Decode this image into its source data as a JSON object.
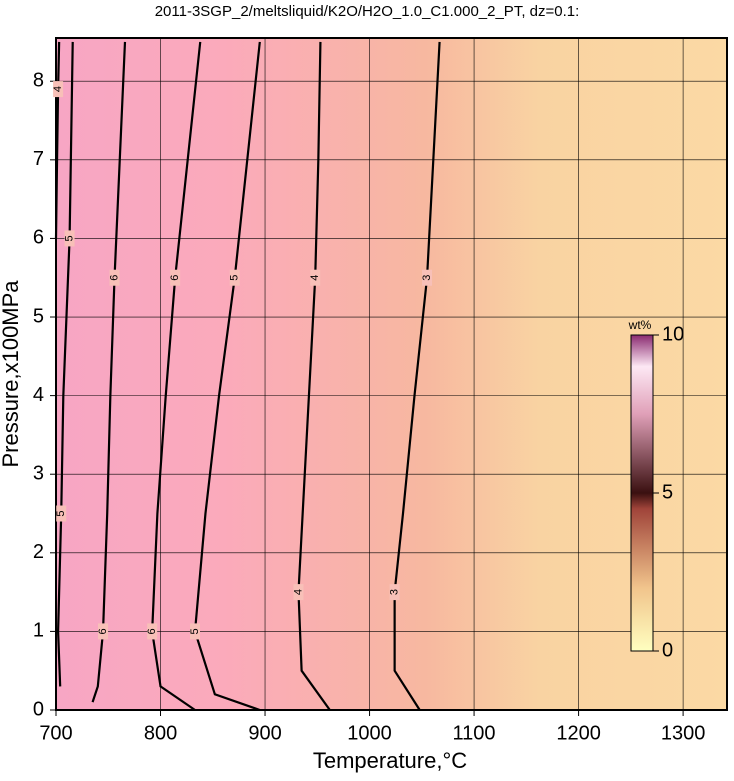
{
  "chart_data": {
    "type": "contour",
    "title": "2011-3SGP_2/meltsliquid/K2O/H2O_1.0_C1.000_2_PT, dz=0.1:",
    "x_label": "Temperature,°C",
    "y_label": "Pressure,x100MPa",
    "xlim": [
      700,
      1342
    ],
    "ylim": [
      0,
      8.55
    ],
    "xticks": [
      700,
      800,
      900,
      1000,
      1100,
      1200,
      1300
    ],
    "yticks": [
      0,
      1,
      2,
      3,
      4,
      5,
      6,
      7,
      8
    ],
    "grid": true,
    "contours": [
      {
        "level": 5,
        "x": [
          704,
          702,
          705,
          707,
          710,
          713,
          716
        ],
        "y": [
          0.3,
          1.0,
          2.5,
          4.0,
          5.0,
          6.0,
          8.5
        ]
      },
      {
        "level": 4,
        "x": [
          700,
          701,
          702,
          703
        ],
        "y": [
          6.0,
          7.0,
          7.9,
          8.5
        ]
      },
      {
        "level": 6,
        "x": [
          735,
          740,
          745,
          749,
          752,
          756,
          761,
          766
        ],
        "y": [
          0.1,
          0.3,
          1.0,
          2.5,
          4.0,
          5.5,
          7.0,
          8.5
        ]
      },
      {
        "level": 6,
        "x": [
          833,
          800,
          792,
          797,
          805,
          814,
          826,
          838
        ],
        "y": [
          0.0,
          0.3,
          1.0,
          2.5,
          4.0,
          5.5,
          7.0,
          8.5
        ]
      },
      {
        "level": 5,
        "x": [
          895,
          852,
          833,
          843,
          856,
          871,
          883,
          895
        ],
        "y": [
          0.0,
          0.2,
          1.0,
          2.5,
          4.0,
          5.5,
          7.0,
          8.5
        ]
      },
      {
        "level": 4,
        "x": [
          962,
          935,
          932,
          936,
          942,
          948,
          951,
          953
        ],
        "y": [
          0.0,
          0.5,
          1.5,
          2.5,
          4.0,
          5.5,
          7.0,
          8.5
        ]
      },
      {
        "level": 3,
        "x": [
          1048,
          1024,
          1024,
          1032,
          1043,
          1055,
          1061,
          1067
        ],
        "y": [
          0.0,
          0.5,
          1.5,
          2.5,
          4.0,
          5.5,
          7.0,
          8.5
        ]
      }
    ],
    "colorbar": {
      "label": "wt%",
      "lim": [
        0,
        10
      ],
      "ticks": [
        0,
        5,
        10
      ]
    }
  }
}
